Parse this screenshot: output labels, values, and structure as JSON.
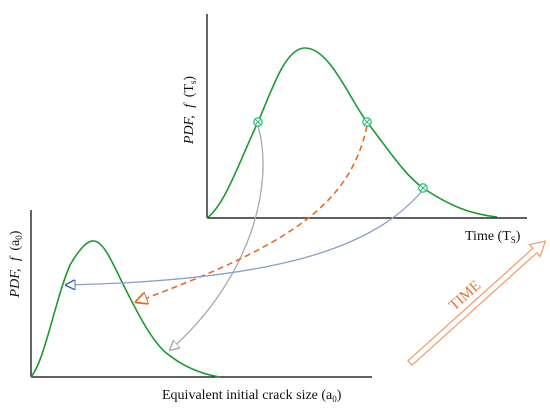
{
  "upper_plot": {
    "y_label_prefix": "PDF,",
    "y_label_f": "f",
    "y_label_arg_open": "(T",
    "y_label_arg_sub": "s",
    "y_label_arg_close": ")",
    "x_label_main": "Time (T",
    "x_label_sub": "S",
    "x_label_close": ")",
    "curve": "right-skewed density, rises from origin to a peak then decays"
  },
  "lower_plot": {
    "y_label_prefix": "PDF,",
    "y_label_f": "f",
    "y_label_arg_open": "(a",
    "y_label_arg_sub": "0",
    "y_label_arg_close": ")",
    "x_label_main": "Equivalent initial crack size (a",
    "x_label_sub": "0",
    "x_label_close": ")",
    "curve": "right-skewed density with a sharp early peak"
  },
  "time_arrow": {
    "label": "TIME"
  },
  "colors": {
    "curve": "#1a9a2e",
    "marker": "#2fc27a",
    "arrow_gray": "#a8a8b4",
    "arrow_dashed": "#e86a1f",
    "arrow_blue": "#8aa0c8",
    "time_arrow": "#f0a070",
    "axis": "#000000"
  },
  "markers": [
    {
      "name": "marker-left",
      "color": "#2fc27a"
    },
    {
      "name": "marker-middle",
      "color": "#2fc27a"
    },
    {
      "name": "marker-right",
      "color": "#2fc27a"
    }
  ]
}
